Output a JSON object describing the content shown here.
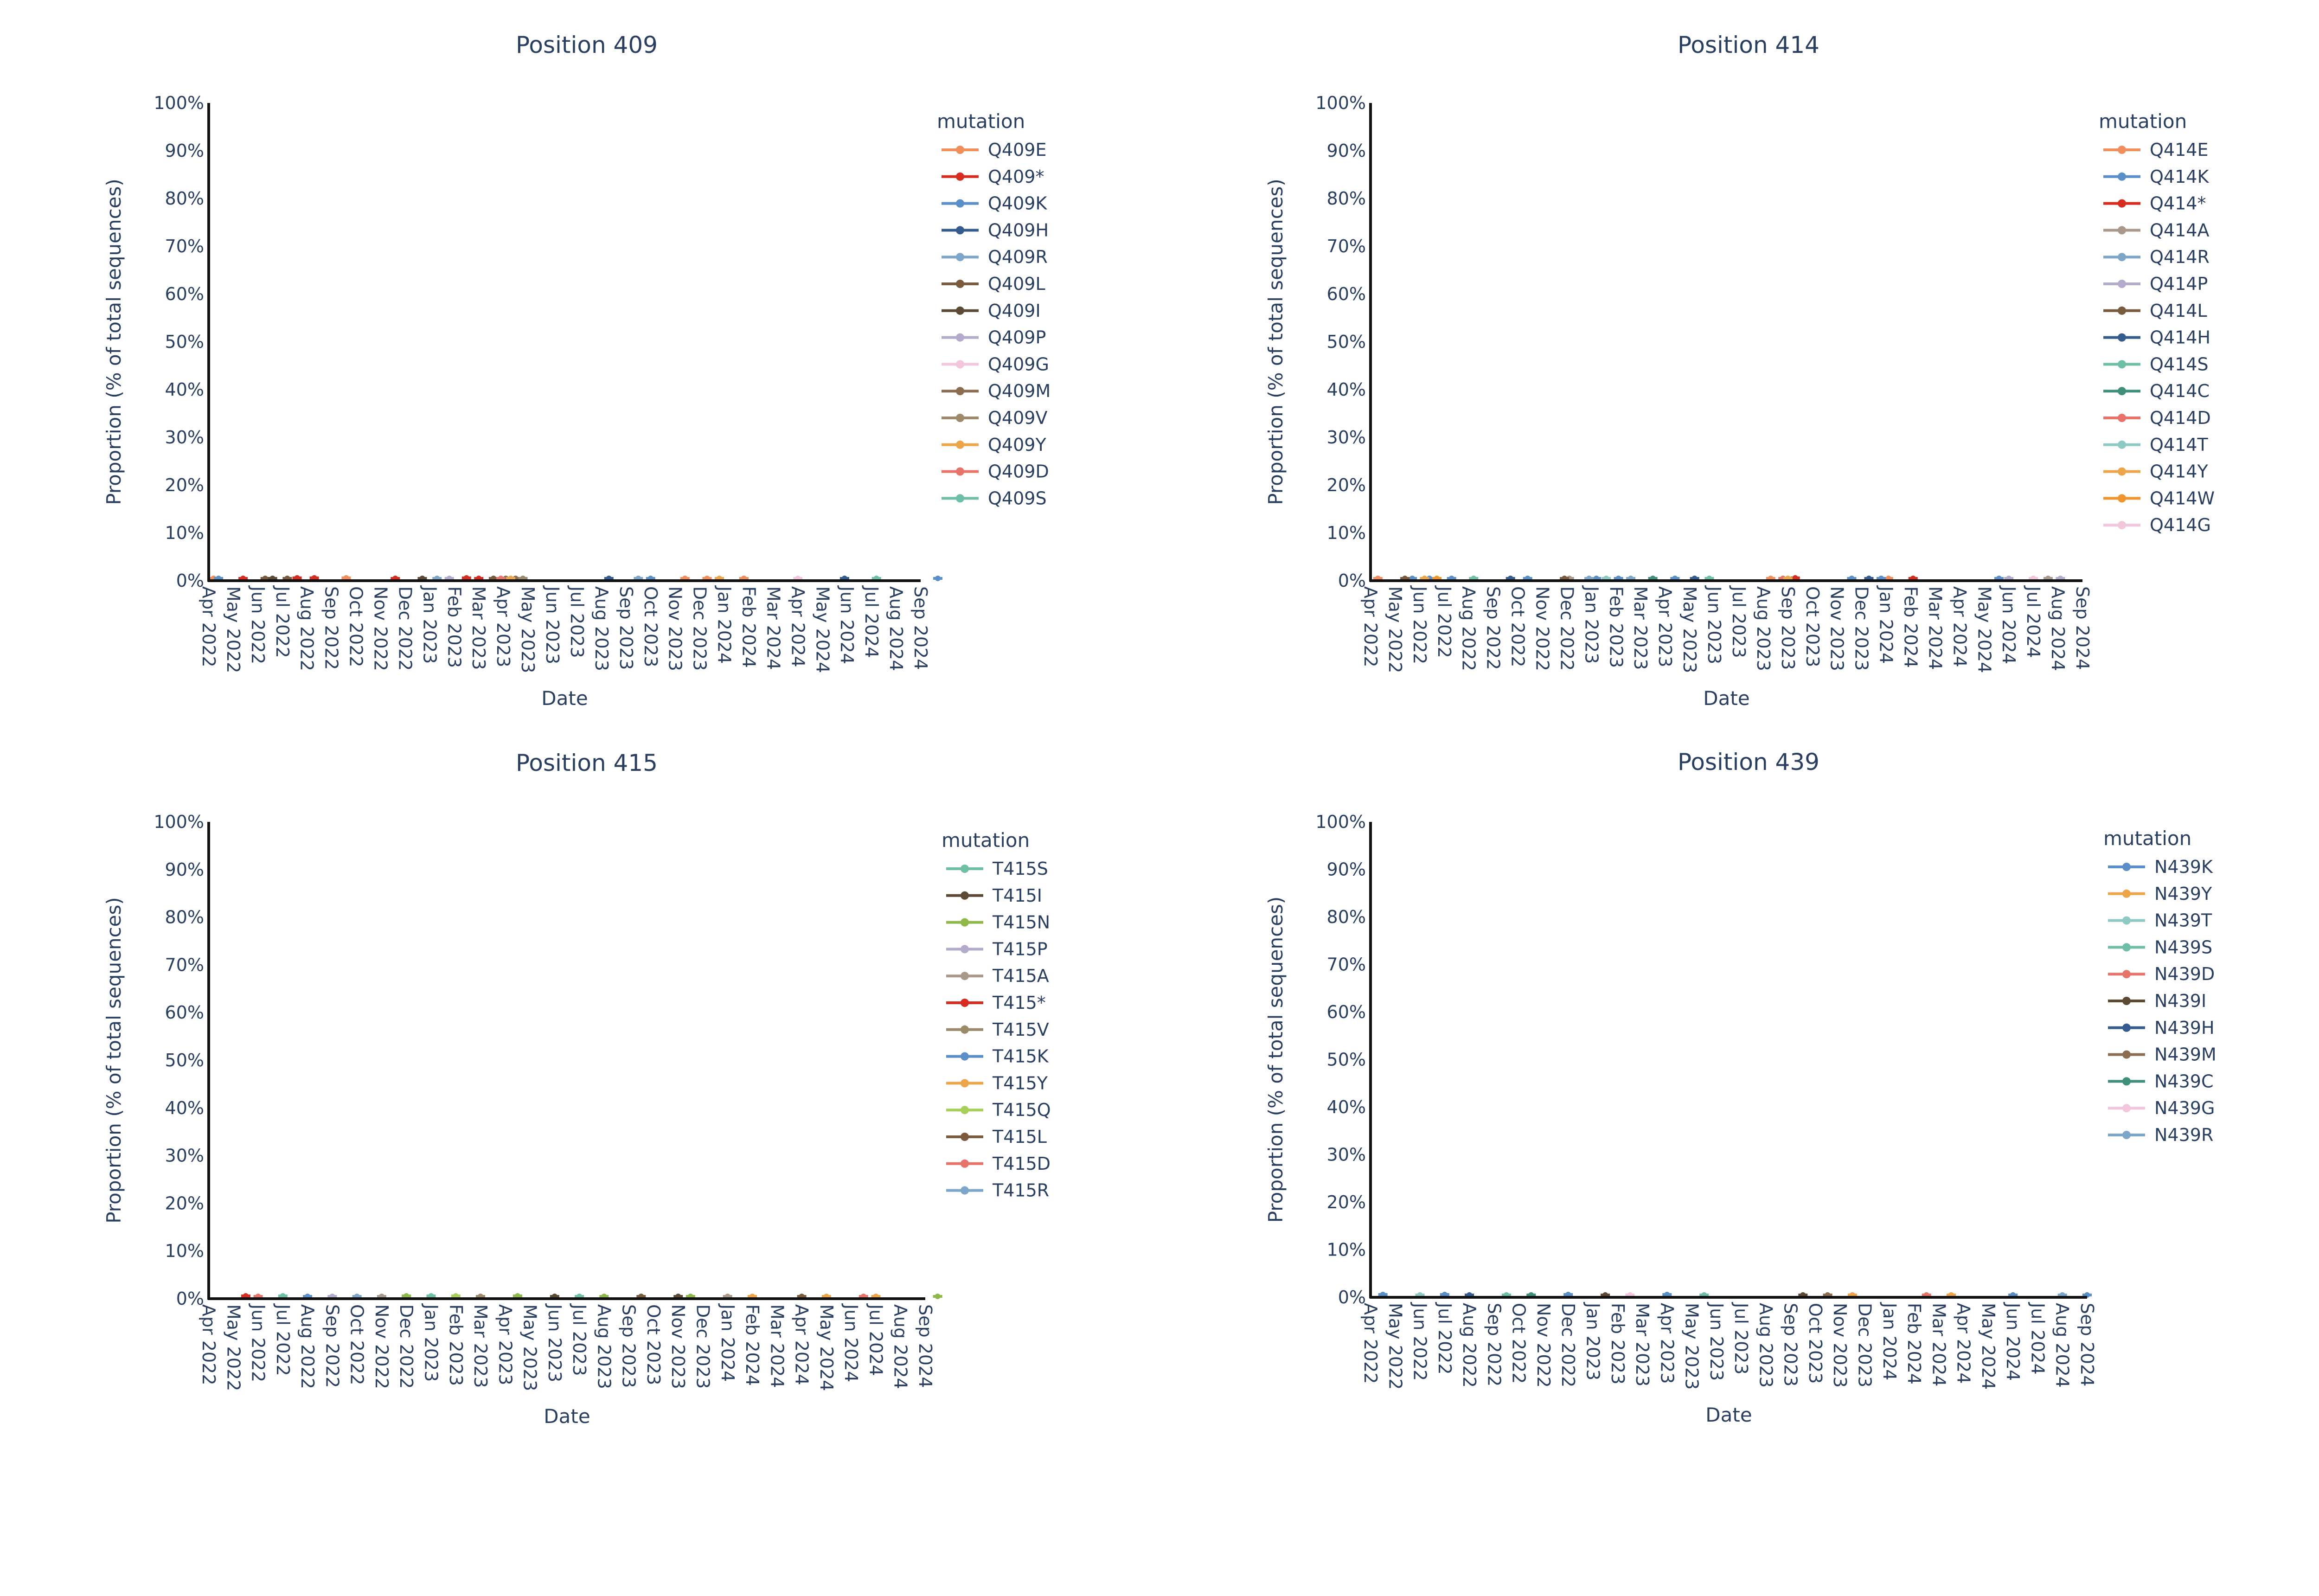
{
  "figure": {
    "axis_title_y": "Proportion (% of total sequences)",
    "axis_title_x": "Date",
    "legend_title": "mutation"
  },
  "colors": {
    "axis": "#111111",
    "text": "#2a3f5f"
  },
  "chart_data": [
    {
      "type": "line",
      "title": "Position 409",
      "xlabel": "Date",
      "ylabel": "Proportion (% of total sequences)",
      "ylim": [
        0,
        100
      ],
      "yticks": [
        "0%",
        "10%",
        "20%",
        "30%",
        "40%",
        "50%",
        "60%",
        "70%",
        "80%",
        "90%",
        "100%"
      ],
      "categories": [
        "Apr 2022",
        "May 2022",
        "Jun 2022",
        "Jul 2022",
        "Aug 2022",
        "Sep 2022",
        "Oct 2022",
        "Nov 2022",
        "Dec 2022",
        "Jan 2023",
        "Feb 2023",
        "Mar 2023",
        "Apr 2023",
        "May 2023",
        "Jun 2023",
        "Jul 2023",
        "Aug 2023",
        "Sep 2023",
        "Oct 2023",
        "Nov 2023",
        "Dec 2023",
        "Jan 2024",
        "Feb 2024",
        "Mar 2024",
        "Apr 2024",
        "May 2024",
        "Jun 2024",
        "Jul 2024",
        "Aug 2024",
        "Sep 2024"
      ],
      "legend_title": "mutation",
      "series": [
        {
          "name": "Q409E",
          "color": "#f28e5c",
          "points": [
            [
              0.2,
              0.1
            ],
            [
              5.6,
              0.2
            ],
            [
              19.4,
              0.1
            ],
            [
              20.3,
              0.1
            ],
            [
              21.8,
              0.1
            ]
          ]
        },
        {
          "name": "Q409*",
          "color": "#d62d20",
          "points": [
            [
              1.4,
              0.1
            ],
            [
              3.6,
              0.2
            ],
            [
              4.3,
              0.2
            ],
            [
              7.6,
              0.1
            ],
            [
              10.5,
              0.2
            ],
            [
              11.0,
              0.1
            ]
          ]
        },
        {
          "name": "Q409K",
          "color": "#5b8fc7",
          "points": [
            [
              0.4,
              0.1
            ],
            [
              18.0,
              0.1
            ],
            [
              29.7,
              0.1
            ]
          ]
        },
        {
          "name": "Q409H",
          "color": "#355c8f",
          "points": [
            [
              16.3,
              0.1
            ],
            [
              25.9,
              0.1
            ]
          ]
        },
        {
          "name": "Q409R",
          "color": "#7ea6c9",
          "points": [
            [
              9.3,
              0.1
            ],
            [
              17.5,
              0.1
            ]
          ]
        },
        {
          "name": "Q409L",
          "color": "#7a5b3e",
          "points": [
            [
              2.3,
              0.1
            ],
            [
              3.2,
              0.1
            ],
            [
              11.6,
              0.1
            ]
          ]
        },
        {
          "name": "Q409I",
          "color": "#5c4a35",
          "points": [
            [
              2.6,
              0.1
            ],
            [
              8.7,
              0.1
            ]
          ]
        },
        {
          "name": "Q409P",
          "color": "#b3aacc",
          "points": [
            [
              9.8,
              0.1
            ]
          ]
        },
        {
          "name": "Q409G",
          "color": "#f2c6dc",
          "points": [
            [
              24.0,
              0.1
            ]
          ]
        },
        {
          "name": "Q409M",
          "color": "#8c6d52",
          "points": [
            [
              12.1,
              0.1
            ],
            [
              12.5,
              0.1
            ]
          ]
        },
        {
          "name": "Q409V",
          "color": "#9c8a6a",
          "points": [
            [
              12.8,
              0.1
            ]
          ]
        },
        {
          "name": "Q409Y",
          "color": "#eda54a",
          "points": [
            [
              12.3,
              0.1
            ],
            [
              20.8,
              0.1
            ]
          ]
        },
        {
          "name": "Q409D",
          "color": "#e8736a",
          "points": [
            [
              11.9,
              0.1
            ]
          ]
        },
        {
          "name": "Q409S",
          "color": "#6dbfa8",
          "points": [
            [
              27.2,
              0.1
            ]
          ]
        }
      ]
    },
    {
      "type": "line",
      "title": "Position 414",
      "xlabel": "Date",
      "ylabel": "Proportion (% of total sequences)",
      "ylim": [
        0,
        100
      ],
      "yticks": [
        "0%",
        "10%",
        "20%",
        "30%",
        "40%",
        "50%",
        "60%",
        "70%",
        "80%",
        "90%",
        "100%"
      ],
      "categories": [
        "Apr 2022",
        "May 2022",
        "Jun 2022",
        "Jul 2022",
        "Aug 2022",
        "Sep 2022",
        "Oct 2022",
        "Nov 2022",
        "Dec 2022",
        "Jan 2023",
        "Feb 2023",
        "Mar 2023",
        "Apr 2023",
        "May 2023",
        "Jun 2023",
        "Jul 2023",
        "Aug 2023",
        "Sep 2023",
        "Oct 2023",
        "Nov 2023",
        "Dec 2023",
        "Jan 2024",
        "Feb 2024",
        "Mar 2024",
        "Apr 2024",
        "May 2024",
        "Jun 2024",
        "Jul 2024",
        "Aug 2024",
        "Sep 2024"
      ],
      "legend_title": "mutation",
      "series": [
        {
          "name": "Q414E",
          "color": "#f28e5c",
          "points": [
            [
              0.3,
              0.1
            ],
            [
              16.3,
              0.1
            ],
            [
              21.1,
              0.1
            ]
          ]
        },
        {
          "name": "Q414K",
          "color": "#5b8fc7",
          "points": [
            [
              1.7,
              0.1
            ],
            [
              2.4,
              0.1
            ],
            [
              3.3,
              0.1
            ],
            [
              6.4,
              0.1
            ],
            [
              9.2,
              0.1
            ],
            [
              10.1,
              0.1
            ],
            [
              12.4,
              0.1
            ],
            [
              19.6,
              0.1
            ],
            [
              20.8,
              0.1
            ],
            [
              25.6,
              0.1
            ]
          ]
        },
        {
          "name": "Q414*",
          "color": "#d62d20",
          "points": [
            [
              17.3,
              0.2
            ],
            [
              22.1,
              0.1
            ]
          ]
        },
        {
          "name": "Q414A",
          "color": "#a8998a",
          "points": [
            [
              8.1,
              0.1
            ],
            [
              27.6,
              0.1
            ]
          ]
        },
        {
          "name": "Q414R",
          "color": "#7ea6c9",
          "points": [
            [
              8.9,
              0.1
            ],
            [
              10.6,
              0.1
            ]
          ]
        },
        {
          "name": "Q414P",
          "color": "#b3aacc",
          "points": [
            [
              26.0,
              0.1
            ],
            [
              28.1,
              0.1
            ]
          ]
        },
        {
          "name": "Q414L",
          "color": "#7a5b3e",
          "points": [
            [
              1.4,
              0.1
            ],
            [
              7.9,
              0.1
            ]
          ]
        },
        {
          "name": "Q414H",
          "color": "#355c8f",
          "points": [
            [
              5.7,
              0.1
            ],
            [
              13.2,
              0.1
            ],
            [
              20.3,
              0.1
            ]
          ]
        },
        {
          "name": "Q414S",
          "color": "#6dbfa8",
          "points": [
            [
              4.2,
              0.1
            ],
            [
              13.8,
              0.1
            ]
          ]
        },
        {
          "name": "Q414C",
          "color": "#3f8f7a",
          "points": [
            [
              11.5,
              0.1
            ]
          ]
        },
        {
          "name": "Q414D",
          "color": "#e8736a",
          "points": [
            [
              16.8,
              0.1
            ]
          ]
        },
        {
          "name": "Q414T",
          "color": "#8fc9c4",
          "points": [
            [
              9.6,
              0.1
            ]
          ]
        },
        {
          "name": "Q414Y",
          "color": "#eda54a",
          "points": [
            [
              2.2,
              0.1
            ],
            [
              17.0,
              0.1
            ]
          ]
        },
        {
          "name": "Q414W",
          "color": "#f0942e",
          "points": [
            [
              2.7,
              0.1
            ]
          ]
        },
        {
          "name": "Q414G",
          "color": "#f2c6dc",
          "points": [
            [
              27.0,
              0.1
            ]
          ]
        }
      ]
    },
    {
      "type": "line",
      "title": "Position 415",
      "xlabel": "Date",
      "ylabel": "Proportion (% of total sequences)",
      "ylim": [
        0,
        100
      ],
      "yticks": [
        "0%",
        "10%",
        "20%",
        "30%",
        "40%",
        "50%",
        "60%",
        "70%",
        "80%",
        "90%",
        "100%"
      ],
      "categories": [
        "Apr 2022",
        "May 2022",
        "Jun 2022",
        "Jul 2022",
        "Aug 2022",
        "Sep 2022",
        "Oct 2022",
        "Nov 2022",
        "Dec 2022",
        "Jan 2023",
        "Feb 2023",
        "Mar 2023",
        "Apr 2023",
        "May 2023",
        "Jun 2023",
        "Jul 2023",
        "Aug 2023",
        "Sep 2023",
        "Oct 2023",
        "Nov 2023",
        "Dec 2023",
        "Jan 2024",
        "Feb 2024",
        "Mar 2024",
        "Apr 2024",
        "May 2024",
        "Jun 2024",
        "Jul 2024",
        "Aug 2024",
        "Sep 2024"
      ],
      "legend_title": "mutation",
      "series": [
        {
          "name": "T415S",
          "color": "#6dbfa8",
          "points": [
            [
              3.0,
              0.2
            ],
            [
              9.0,
              0.2
            ],
            [
              15.0,
              0.1
            ]
          ]
        },
        {
          "name": "T415I",
          "color": "#5c4a35",
          "points": [
            [
              14.0,
              0.1
            ],
            [
              19.0,
              0.1
            ]
          ]
        },
        {
          "name": "T415N",
          "color": "#8fb84a",
          "points": [
            [
              8.0,
              0.2
            ],
            [
              12.5,
              0.2
            ],
            [
              16.0,
              0.1
            ],
            [
              19.5,
              0.1
            ],
            [
              29.5,
              0.1
            ]
          ]
        },
        {
          "name": "T415P",
          "color": "#b3aacc",
          "points": [
            [
              5.0,
              0.1
            ]
          ]
        },
        {
          "name": "T415A",
          "color": "#a8998a",
          "points": [
            [
              7.0,
              0.1
            ],
            [
              21.0,
              0.1
            ]
          ]
        },
        {
          "name": "T415*",
          "color": "#d62d20",
          "points": [
            [
              1.5,
              0.2
            ]
          ]
        },
        {
          "name": "T415V",
          "color": "#9c8a6a",
          "points": [
            [
              11.0,
              0.1
            ]
          ]
        },
        {
          "name": "T415K",
          "color": "#5b8fc7",
          "points": [
            [
              4.0,
              0.1
            ]
          ]
        },
        {
          "name": "T415Y",
          "color": "#eda54a",
          "points": [
            [
              22.0,
              0.1
            ],
            [
              25.0,
              0.1
            ],
            [
              27.0,
              0.1
            ]
          ]
        },
        {
          "name": "T415Q",
          "color": "#a6cf5b",
          "points": [
            [
              10.0,
              0.2
            ]
          ]
        },
        {
          "name": "T415L",
          "color": "#7a5b3e",
          "points": [
            [
              17.5,
              0.1
            ],
            [
              24.0,
              0.1
            ]
          ]
        },
        {
          "name": "T415D",
          "color": "#e8736a",
          "points": [
            [
              2.0,
              0.1
            ],
            [
              26.5,
              0.1
            ]
          ]
        },
        {
          "name": "T415R",
          "color": "#7ea6c9",
          "points": [
            [
              6.0,
              0.1
            ]
          ]
        }
      ]
    },
    {
      "type": "line",
      "title": "Position 439",
      "xlabel": "Date",
      "ylabel": "Proportion (% of total sequences)",
      "ylim": [
        0,
        100
      ],
      "yticks": [
        "0%",
        "10%",
        "20%",
        "30%",
        "40%",
        "50%",
        "60%",
        "70%",
        "80%",
        "90%",
        "100%"
      ],
      "categories": [
        "Apr 2022",
        "May 2022",
        "Jun 2022",
        "Jul 2022",
        "Aug 2022",
        "Sep 2022",
        "Oct 2022",
        "Nov 2022",
        "Dec 2022",
        "Jan 2023",
        "Feb 2023",
        "Mar 2023",
        "Apr 2023",
        "May 2023",
        "Jun 2023",
        "Jul 2023",
        "Aug 2023",
        "Sep 2023",
        "Oct 2023",
        "Nov 2023",
        "Dec 2023",
        "Jan 2024",
        "Feb 2024",
        "Mar 2024",
        "Apr 2024",
        "May 2024",
        "Jun 2024",
        "Jul 2024",
        "Aug 2024",
        "Sep 2024"
      ],
      "legend_title": "mutation",
      "series": [
        {
          "name": "N439K",
          "color": "#5b8fc7",
          "points": [
            [
              0.5,
              0.2
            ],
            [
              3.0,
              0.2
            ],
            [
              8.0,
              0.2
            ],
            [
              12.0,
              0.2
            ],
            [
              26.0,
              0.1
            ],
            [
              29.0,
              0.1
            ]
          ]
        },
        {
          "name": "N439Y",
          "color": "#eda54a",
          "points": [
            [
              19.5,
              0.1
            ],
            [
              23.5,
              0.1
            ]
          ]
        },
        {
          "name": "N439T",
          "color": "#8fc9c4",
          "points": [
            [
              2.0,
              0.1
            ]
          ]
        },
        {
          "name": "N439S",
          "color": "#6dbfa8",
          "points": [
            [
              5.5,
              0.1
            ],
            [
              13.5,
              0.1
            ]
          ]
        },
        {
          "name": "N439D",
          "color": "#e8736a",
          "points": [
            [
              22.5,
              0.1
            ]
          ]
        },
        {
          "name": "N439I",
          "color": "#5c4a35",
          "points": [
            [
              9.5,
              0.1
            ],
            [
              17.5,
              0.1
            ]
          ]
        },
        {
          "name": "N439H",
          "color": "#355c8f",
          "points": [
            [
              4.0,
              0.1
            ]
          ]
        },
        {
          "name": "N439M",
          "color": "#8c6d52",
          "points": [
            [
              18.5,
              0.1
            ]
          ]
        },
        {
          "name": "N439C",
          "color": "#3f8f7a",
          "points": [
            [
              6.5,
              0.1
            ]
          ]
        },
        {
          "name": "N439G",
          "color": "#f2c6dc",
          "points": [
            [
              10.5,
              0.1
            ]
          ]
        },
        {
          "name": "N439R",
          "color": "#7ea6c9",
          "points": [
            [
              28.0,
              0.1
            ]
          ]
        }
      ]
    }
  ]
}
